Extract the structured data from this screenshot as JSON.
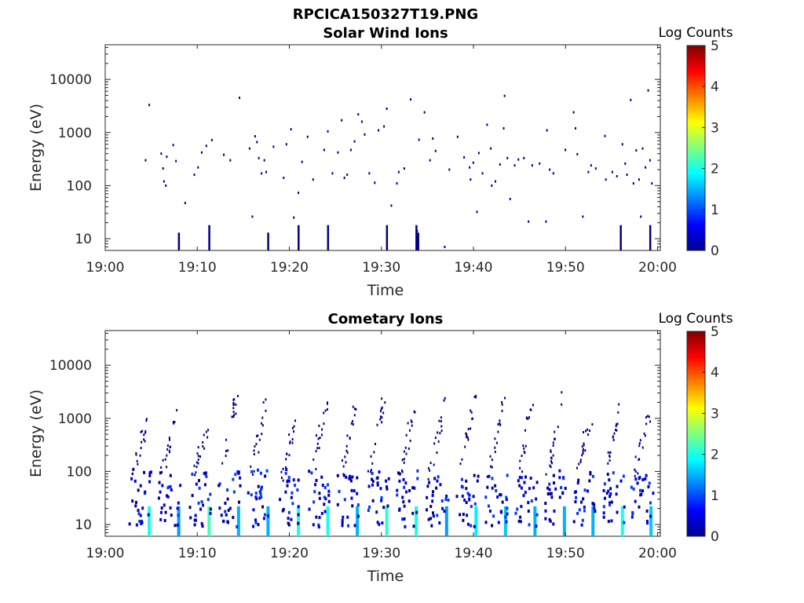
{
  "figure": {
    "title": "RPCICA150327T19.PNG"
  },
  "colorbar": {
    "label": "Log Counts",
    "ticks": [
      "0",
      "1",
      "2",
      "3",
      "4",
      "5"
    ],
    "colormap": "jet",
    "range": [
      0,
      5
    ]
  },
  "chart_data": [
    {
      "type": "heatmap",
      "title": "Solar Wind Ions",
      "xlabel": "Time",
      "ylabel": "Energy (eV)",
      "x_tick_labels": [
        "19:00",
        "19:10",
        "19:20",
        "19:30",
        "19:40",
        "19:50",
        "20:00"
      ],
      "xlim_minutes": [
        0,
        60.3
      ],
      "y_scale": "log",
      "y_tick_labels": [
        "10",
        "100",
        "1000",
        "10000"
      ],
      "ylim": [
        6,
        45000
      ],
      "points": [
        {
          "t": 4.3,
          "e": 300,
          "c": 0
        },
        {
          "t": 4.7,
          "e": 3300,
          "c": 0
        },
        {
          "t": 6.0,
          "e": 400,
          "c": 0
        },
        {
          "t": 6.2,
          "e": 210,
          "c": 0
        },
        {
          "t": 6.3,
          "e": 120,
          "c": 0
        },
        {
          "t": 6.5,
          "e": 100,
          "c": 0
        },
        {
          "t": 6.6,
          "e": 350,
          "c": 0
        },
        {
          "t": 7.3,
          "e": 580,
          "c": 0
        },
        {
          "t": 7.6,
          "e": 290,
          "c": 0
        },
        {
          "t": 8.6,
          "e": 47,
          "c": 0
        },
        {
          "t": 9.6,
          "e": 160,
          "c": 0
        },
        {
          "t": 10.0,
          "e": 220,
          "c": 0
        },
        {
          "t": 10.4,
          "e": 420,
          "c": 0
        },
        {
          "t": 10.9,
          "e": 560,
          "c": 0
        },
        {
          "t": 11.5,
          "e": 720,
          "c": 0
        },
        {
          "t": 12.8,
          "e": 380,
          "c": 0
        },
        {
          "t": 13.5,
          "e": 300,
          "c": 0
        },
        {
          "t": 14.5,
          "e": 4500,
          "c": 0
        },
        {
          "t": 15.6,
          "e": 500,
          "c": 0
        },
        {
          "t": 15.9,
          "e": 26,
          "c": 0
        },
        {
          "t": 16.2,
          "e": 850,
          "c": 0
        },
        {
          "t": 16.4,
          "e": 660,
          "c": 0
        },
        {
          "t": 16.6,
          "e": 330,
          "c": 0
        },
        {
          "t": 16.9,
          "e": 170,
          "c": 0
        },
        {
          "t": 17.2,
          "e": 300,
          "c": 0
        },
        {
          "t": 17.4,
          "e": 180,
          "c": 0
        },
        {
          "t": 18.2,
          "e": 540,
          "c": 0
        },
        {
          "t": 19.3,
          "e": 140,
          "c": 0
        },
        {
          "t": 19.6,
          "e": 600,
          "c": 0
        },
        {
          "t": 20.1,
          "e": 1150,
          "c": 0
        },
        {
          "t": 20.4,
          "e": 25,
          "c": 0
        },
        {
          "t": 20.9,
          "e": 73,
          "c": 0
        },
        {
          "t": 21.3,
          "e": 280,
          "c": 0
        },
        {
          "t": 21.9,
          "e": 830,
          "c": 0
        },
        {
          "t": 22.5,
          "e": 130,
          "c": 0
        },
        {
          "t": 23.7,
          "e": 470,
          "c": 0
        },
        {
          "t": 24.1,
          "e": 1050,
          "c": 0
        },
        {
          "t": 24.6,
          "e": 170,
          "c": 0
        },
        {
          "t": 25.2,
          "e": 420,
          "c": 0
        },
        {
          "t": 25.6,
          "e": 1700,
          "c": 0
        },
        {
          "t": 25.9,
          "e": 140,
          "c": 0
        },
        {
          "t": 26.2,
          "e": 160,
          "c": 0
        },
        {
          "t": 26.6,
          "e": 470,
          "c": 0
        },
        {
          "t": 27.0,
          "e": 680,
          "c": 0
        },
        {
          "t": 27.4,
          "e": 2200,
          "c": 0
        },
        {
          "t": 27.8,
          "e": 1600,
          "c": 0
        },
        {
          "t": 28.1,
          "e": 920,
          "c": 0
        },
        {
          "t": 28.6,
          "e": 170,
          "c": 0
        },
        {
          "t": 29.2,
          "e": 113,
          "c": 0
        },
        {
          "t": 29.6,
          "e": 1100,
          "c": 0
        },
        {
          "t": 30.2,
          "e": 1300,
          "c": 0
        },
        {
          "t": 30.5,
          "e": 2800,
          "c": 0
        },
        {
          "t": 31.0,
          "e": 42,
          "c": 0
        },
        {
          "t": 31.6,
          "e": 110,
          "c": 0
        },
        {
          "t": 31.8,
          "e": 180,
          "c": 0
        },
        {
          "t": 32.4,
          "e": 210,
          "c": 0
        },
        {
          "t": 33.1,
          "e": 4200,
          "c": 0
        },
        {
          "t": 33.8,
          "e": 14,
          "c": 0
        },
        {
          "t": 34.0,
          "e": 730,
          "c": 0
        },
        {
          "t": 34.6,
          "e": 2400,
          "c": 0
        },
        {
          "t": 35.2,
          "e": 300,
          "c": 0
        },
        {
          "t": 35.5,
          "e": 770,
          "c": 0
        },
        {
          "t": 35.8,
          "e": 450,
          "c": 0
        },
        {
          "t": 36.8,
          "e": 7,
          "c": 0
        },
        {
          "t": 37.3,
          "e": 200,
          "c": 0
        },
        {
          "t": 38.2,
          "e": 830,
          "c": 0
        },
        {
          "t": 38.9,
          "e": 340,
          "c": 0
        },
        {
          "t": 39.5,
          "e": 220,
          "c": 0
        },
        {
          "t": 39.6,
          "e": 130,
          "c": 0
        },
        {
          "t": 39.9,
          "e": 270,
          "c": 0
        },
        {
          "t": 40.3,
          "e": 32,
          "c": 0
        },
        {
          "t": 40.5,
          "e": 410,
          "c": 0
        },
        {
          "t": 40.9,
          "e": 170,
          "c": 0
        },
        {
          "t": 41.4,
          "e": 1400,
          "c": 0
        },
        {
          "t": 41.8,
          "e": 500,
          "c": 0
        },
        {
          "t": 41.9,
          "e": 100,
          "c": 0
        },
        {
          "t": 42.3,
          "e": 120,
          "c": 0
        },
        {
          "t": 42.8,
          "e": 250,
          "c": 0
        },
        {
          "t": 43.2,
          "e": 1200,
          "c": 0
        },
        {
          "t": 43.3,
          "e": 4900,
          "c": 0
        },
        {
          "t": 43.6,
          "e": 330,
          "c": 0
        },
        {
          "t": 43.9,
          "e": 56,
          "c": 0
        },
        {
          "t": 44.4,
          "e": 240,
          "c": 0
        },
        {
          "t": 44.8,
          "e": 310,
          "c": 0
        },
        {
          "t": 45.4,
          "e": 330,
          "c": 0
        },
        {
          "t": 45.9,
          "e": 21,
          "c": 0
        },
        {
          "t": 46.3,
          "e": 240,
          "c": 0
        },
        {
          "t": 47.1,
          "e": 260,
          "c": 0
        },
        {
          "t": 47.8,
          "e": 21,
          "c": 0
        },
        {
          "t": 47.9,
          "e": 1100,
          "c": 0
        },
        {
          "t": 48.2,
          "e": 200,
          "c": 0
        },
        {
          "t": 48.6,
          "e": 170,
          "c": 0
        },
        {
          "t": 49.9,
          "e": 470,
          "c": 0
        },
        {
          "t": 50.8,
          "e": 2400,
          "c": 0
        },
        {
          "t": 51.0,
          "e": 1200,
          "c": 0
        },
        {
          "t": 51.2,
          "e": 390,
          "c": 0
        },
        {
          "t": 51.8,
          "e": 26,
          "c": 0
        },
        {
          "t": 52.4,
          "e": 180,
          "c": 0
        },
        {
          "t": 52.7,
          "e": 240,
          "c": 0
        },
        {
          "t": 53.2,
          "e": 210,
          "c": 0
        },
        {
          "t": 54.2,
          "e": 860,
          "c": 0
        },
        {
          "t": 54.3,
          "e": 130,
          "c": 0
        },
        {
          "t": 55.0,
          "e": 180,
          "c": 0
        },
        {
          "t": 55.5,
          "e": 150,
          "c": 0
        },
        {
          "t": 56.1,
          "e": 600,
          "c": 0
        },
        {
          "t": 56.4,
          "e": 260,
          "c": 0
        },
        {
          "t": 56.6,
          "e": 160,
          "c": 0
        },
        {
          "t": 57.0,
          "e": 4100,
          "c": 0
        },
        {
          "t": 57.3,
          "e": 110,
          "c": 0
        },
        {
          "t": 57.6,
          "e": 460,
          "c": 0
        },
        {
          "t": 57.9,
          "e": 130,
          "c": 0
        },
        {
          "t": 58.1,
          "e": 26,
          "c": 0
        },
        {
          "t": 58.3,
          "e": 500,
          "c": 0
        },
        {
          "t": 58.6,
          "e": 220,
          "c": 0
        },
        {
          "t": 58.9,
          "e": 6200,
          "c": 0
        },
        {
          "t": 59.1,
          "e": 300,
          "c": 0
        },
        {
          "t": 59.3,
          "e": 110,
          "c": 0
        }
      ],
      "spikes": [
        {
          "t": 7.9,
          "e_lo": 6,
          "e_hi": 13,
          "c": 0
        },
        {
          "t": 11.2,
          "e_lo": 6,
          "e_hi": 18,
          "c": 0
        },
        {
          "t": 17.6,
          "e_lo": 6,
          "e_hi": 13,
          "c": 0
        },
        {
          "t": 20.9,
          "e_lo": 6,
          "e_hi": 18,
          "c": 0
        },
        {
          "t": 24.1,
          "e_lo": 6,
          "e_hi": 18,
          "c": 0
        },
        {
          "t": 30.5,
          "e_lo": 6,
          "e_hi": 18,
          "c": 0
        },
        {
          "t": 33.7,
          "e_lo": 6,
          "e_hi": 18,
          "c": 0
        },
        {
          "t": 33.9,
          "e_lo": 6,
          "e_hi": 13,
          "c": 0
        },
        {
          "t": 55.9,
          "e_lo": 5.5,
          "e_hi": 18,
          "c": 0
        },
        {
          "t": 59.1,
          "e_lo": 6,
          "e_hi": 18,
          "c": 0
        }
      ]
    },
    {
      "type": "heatmap",
      "title": "Cometary Ions",
      "xlabel": "Time",
      "ylabel": "Energy (eV)",
      "x_tick_labels": [
        "19:00",
        "19:10",
        "19:20",
        "19:30",
        "19:40",
        "19:50",
        "20:00"
      ],
      "xlim_minutes": [
        0,
        60.3
      ],
      "y_scale": "log",
      "y_tick_labels": [
        "10",
        "100",
        "1000",
        "10000"
      ],
      "ylim": [
        6,
        45000
      ],
      "bursts": [
        {
          "t": 4.7,
          "e_top": 1000,
          "core_hi": 2.0
        },
        {
          "t": 7.9,
          "e_top": 1500,
          "core_hi": 1.4
        },
        {
          "t": 11.2,
          "e_top": 600,
          "core_hi": 2.2
        },
        {
          "t": 14.4,
          "e_top": 2400,
          "core_hi": 1.5
        },
        {
          "t": 17.6,
          "e_top": 2600,
          "core_hi": 1.5
        },
        {
          "t": 20.9,
          "e_top": 1200,
          "core_hi": 2.0
        },
        {
          "t": 24.1,
          "e_top": 1700,
          "core_hi": 2.0
        },
        {
          "t": 27.3,
          "e_top": 2000,
          "core_hi": 1.5
        },
        {
          "t": 30.5,
          "e_top": 2900,
          "core_hi": 2.1
        },
        {
          "t": 33.7,
          "e_top": 1500,
          "core_hi": 2.0
        },
        {
          "t": 37.0,
          "e_top": 1900,
          "core_hi": 1.4
        },
        {
          "t": 40.2,
          "e_top": 2400,
          "core_hi": 1.8
        },
        {
          "t": 43.4,
          "e_top": 2200,
          "core_hi": 1.6
        },
        {
          "t": 46.6,
          "e_top": 2300,
          "core_hi": 1.5
        },
        {
          "t": 49.8,
          "e_top": 2600,
          "core_hi": 1.5
        },
        {
          "t": 52.9,
          "e_top": 1100,
          "core_hi": 1.5
        },
        {
          "t": 56.1,
          "e_top": 1600,
          "core_hi": 2.0
        },
        {
          "t": 59.2,
          "e_top": 1400,
          "core_hi": 1.6
        }
      ]
    }
  ]
}
